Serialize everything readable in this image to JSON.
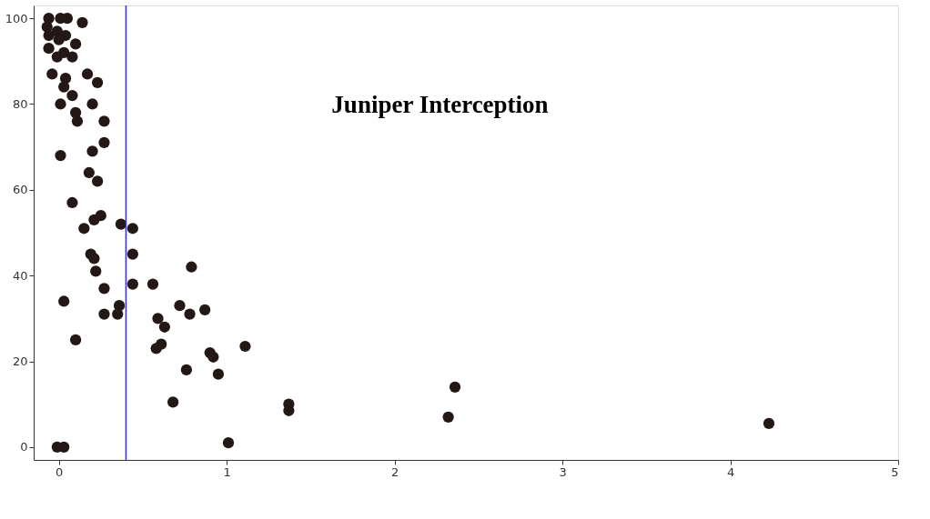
{
  "chart_data": {
    "type": "scatter",
    "x": [
      -0.06,
      0.01,
      0.05,
      0.14,
      -0.07,
      -0.01,
      0.04,
      -0.06,
      0.0,
      0.1,
      -0.06,
      0.03,
      0.08,
      -0.01,
      -0.04,
      0.04,
      0.03,
      0.17,
      0.23,
      0.01,
      0.08,
      0.2,
      0.1,
      0.11,
      0.27,
      0.27,
      0.2,
      0.01,
      0.18,
      0.23,
      0.08,
      0.21,
      0.25,
      0.15,
      0.37,
      0.44,
      0.19,
      0.21,
      0.22,
      0.44,
      0.79,
      0.27,
      0.44,
      0.56,
      0.03,
      0.36,
      0.27,
      0.35,
      0.72,
      0.78,
      0.87,
      0.1,
      0.59,
      0.63,
      0.61,
      0.58,
      0.9,
      0.92,
      1.11,
      0.76,
      0.95,
      0.68,
      -0.01,
      0.03,
      1.01,
      1.37,
      1.37,
      2.32,
      2.36,
      4.23
    ],
    "series": [
      {
        "color": "#231815",
        "values": [
          100,
          100,
          100,
          99,
          98,
          97,
          96,
          96,
          95,
          94,
          93,
          92,
          91,
          91,
          87,
          86,
          84,
          87,
          85,
          80,
          82,
          80,
          78,
          76,
          76,
          71,
          69,
          68,
          64,
          62,
          57,
          53,
          54,
          51,
          52,
          51,
          45,
          44,
          41,
          45,
          42,
          37,
          38,
          38,
          34,
          33,
          31,
          31,
          33,
          31,
          32,
          25,
          30,
          28,
          24,
          23,
          22,
          21,
          23.5,
          18,
          17,
          10.5,
          0,
          0,
          1,
          10,
          8.5,
          7,
          14,
          5.5
        ]
      }
    ],
    "xlim": [
      -0.15,
      5
    ],
    "ylim": [
      -3,
      103
    ],
    "xticks": [
      0,
      1,
      2,
      3,
      4,
      5
    ],
    "yticks": [
      0,
      20,
      40,
      60,
      80,
      100
    ],
    "marker": "circle",
    "grid": false,
    "ref_lines": [
      {
        "axis": "x",
        "value": 0.4,
        "color": "#3333cc"
      }
    ],
    "annotations": [
      "Juniper Interception"
    ]
  }
}
